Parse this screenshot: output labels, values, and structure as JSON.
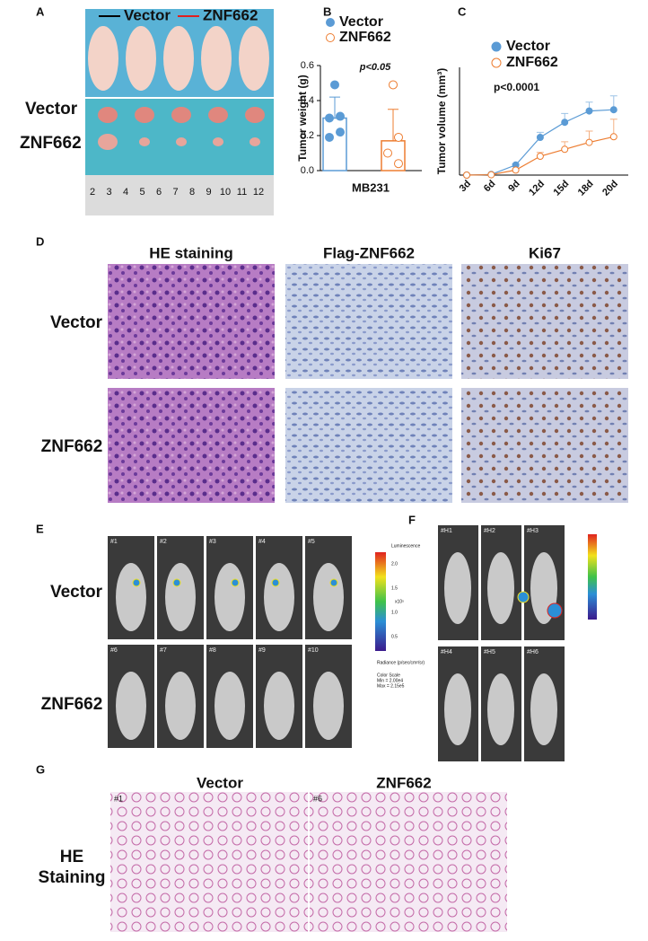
{
  "panel_a": {
    "label": "A",
    "legend": [
      "Vector",
      "ZNF662"
    ],
    "rows": [
      "Vector",
      "ZNF662"
    ],
    "ruler": [
      "2",
      "3",
      "4",
      "5",
      "6",
      "7",
      "8",
      "9",
      "10",
      "11",
      "12"
    ]
  },
  "chart_data": [
    {
      "type": "bar",
      "label": "B",
      "ylabel": "Tumor weight (g)",
      "annotation": "p<0.05",
      "categories": [
        "MB231"
      ],
      "series": [
        {
          "name": "Vector",
          "color": "#5b9bd5",
          "values": [
            0.3
          ],
          "errors": [
            0.12
          ],
          "points": [
            0.49,
            0.31,
            0.3,
            0.22,
            0.19
          ]
        },
        {
          "name": "ZNF662",
          "color": "#ed7d31",
          "values": [
            0.17
          ],
          "errors": [
            0.18
          ],
          "points": [
            0.49,
            0.19,
            0.1,
            0.04
          ]
        }
      ],
      "ylim": [
        0,
        0.6
      ],
      "yticks": [
        {
          "value": 0,
          "label": "0.0"
        },
        {
          "value": 0.2,
          "label": "0.2"
        },
        {
          "value": 0.4,
          "label": "0.4"
        },
        {
          "value": 0.6,
          "label": "0.6"
        }
      ]
    },
    {
      "type": "line",
      "label": "C",
      "ylabel": "Tumor volume (mm³)",
      "annotation": "p<0.0001",
      "categories": [
        "3d",
        "6d",
        "9d",
        "12d",
        "15d",
        "18d",
        "20d"
      ],
      "series": [
        {
          "name": "Vector",
          "color": "#5b9bd5",
          "values": [
            0,
            5,
            80,
            300,
            420,
            510,
            520
          ],
          "errors": [
            0,
            0,
            10,
            40,
            70,
            70,
            110
          ]
        },
        {
          "name": "ZNF662",
          "color": "#ed7d31",
          "values": [
            0,
            3,
            40,
            150,
            205,
            260,
            305
          ],
          "errors": [
            0,
            0,
            10,
            30,
            60,
            90,
            140
          ]
        }
      ],
      "ylim": [
        0,
        700
      ]
    }
  ],
  "panel_d": {
    "label": "D",
    "columns": [
      "HE staining",
      "Flag-ZNF662",
      "Ki67"
    ],
    "rows": [
      "Vector",
      "ZNF662"
    ]
  },
  "panel_e": {
    "label": "E",
    "rows": [
      "Vector",
      "ZNF662"
    ],
    "mice": [
      "#1",
      "#2",
      "#3",
      "#4",
      "#5",
      "#6",
      "#7",
      "#8",
      "#9",
      "#10"
    ],
    "colorbar": {
      "title": "Luminescence",
      "ticks": [
        "2.0",
        "1.5",
        "1.0",
        "0.5"
      ],
      "exponent": "x10⁵",
      "unit": "Radiance (p/sec/cm²/sr)",
      "scale": [
        "Color Scale",
        "Min = 2.00e4",
        "Max = 2.15e5"
      ]
    }
  },
  "panel_f": {
    "label": "F",
    "mice": [
      "#H1",
      "#H2",
      "#H3",
      "#H4",
      "#H5",
      "#H6"
    ]
  },
  "panel_g": {
    "label": "G",
    "columns": [
      "Vector",
      "ZNF662"
    ],
    "row": [
      "HE",
      "Staining"
    ],
    "tags": [
      "#1",
      "#6"
    ]
  }
}
